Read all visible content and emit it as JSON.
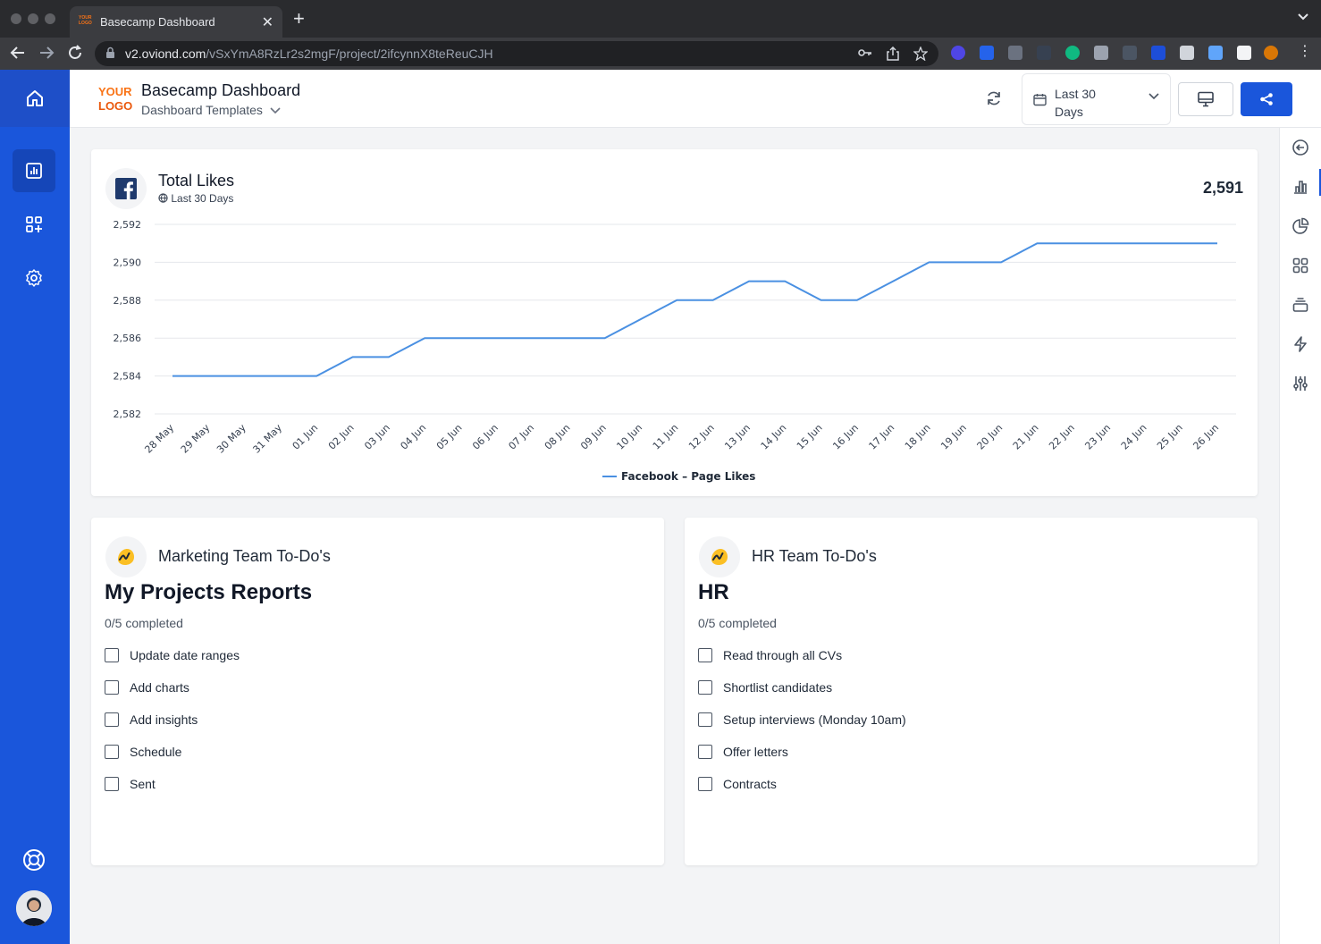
{
  "browser": {
    "tab_title": "Basecamp Dashboard",
    "tab_favicon": "YOUR LOGO",
    "url_domain": "v2.oviond.com",
    "url_path": "/vSxYmA8RzLr2s2mgF/project/2ifcynnX8teReuCJH"
  },
  "header": {
    "logo_line1": "YOUR",
    "logo_line2": "LOGO",
    "title": "Basecamp Dashboard",
    "subtitle": "Dashboard Templates",
    "date_range": "Last 30 Days"
  },
  "colors": {
    "sidebar": "#1a56db",
    "accent": "#1a56db",
    "series": "#4a90e2",
    "basecamp": "#fbbf24"
  },
  "icons": {
    "sidebar": [
      "home-icon",
      "bar-chart-icon",
      "widgets-icon",
      "gear-icon",
      "lifebuoy-icon"
    ],
    "rail": [
      "back-arrow-icon",
      "bar-chart-icon",
      "pie-chart-icon",
      "grid-icon",
      "stack-icon",
      "lightning-icon",
      "sliders-icon"
    ]
  },
  "likes_card": {
    "title": "Total Likes",
    "subtitle": "Last 30 Days",
    "total": "2,591"
  },
  "chart_data": {
    "type": "line",
    "x": [
      "28 May",
      "29 May",
      "30 May",
      "31 May",
      "01 Jun",
      "02 Jun",
      "03 Jun",
      "04 Jun",
      "05 Jun",
      "06 Jun",
      "07 Jun",
      "08 Jun",
      "09 Jun",
      "10 Jun",
      "11 Jun",
      "12 Jun",
      "13 Jun",
      "14 Jun",
      "15 Jun",
      "16 Jun",
      "17 Jun",
      "18 Jun",
      "19 Jun",
      "20 Jun",
      "21 Jun",
      "22 Jun",
      "23 Jun",
      "24 Jun",
      "25 Jun",
      "26 Jun"
    ],
    "series": [
      {
        "name": "Facebook – Page Likes",
        "values": [
          2584,
          2584,
          2584,
          2584,
          2584,
          2585,
          2585,
          2586,
          2586,
          2586,
          2586,
          2586,
          2586,
          2587,
          2588,
          2588,
          2589,
          2589,
          2588,
          2588,
          2589,
          2590,
          2590,
          2590,
          2591,
          2591,
          2591,
          2591,
          2591,
          2591
        ]
      }
    ],
    "ylim": [
      2582,
      2592
    ],
    "yticks": [
      2582,
      2584,
      2586,
      2588,
      2590,
      2592
    ],
    "ytick_labels": [
      "2,582",
      "2,584",
      "2,586",
      "2,588",
      "2,590",
      "2,592"
    ],
    "grid": true,
    "legend": "bottom-center"
  },
  "todo_cards": [
    {
      "heading": "Marketing Team To-Do's",
      "project": "My Projects Reports",
      "progress": "0/5 completed",
      "items": [
        {
          "text": "Update date ranges",
          "done": false
        },
        {
          "text": "Add charts",
          "done": false
        },
        {
          "text": "Add insights",
          "done": false
        },
        {
          "text": "Schedule",
          "done": false
        },
        {
          "text": "Sent",
          "done": false
        }
      ]
    },
    {
      "heading": "HR Team To-Do's",
      "project": "HR",
      "progress": "0/5 completed",
      "items": [
        {
          "text": "Read through all CVs",
          "done": false
        },
        {
          "text": "Shortlist candidates",
          "done": false
        },
        {
          "text": "Setup interviews (Monday 10am)",
          "done": false
        },
        {
          "text": "Offer letters",
          "done": false
        },
        {
          "text": "Contracts",
          "done": false
        }
      ]
    }
  ]
}
